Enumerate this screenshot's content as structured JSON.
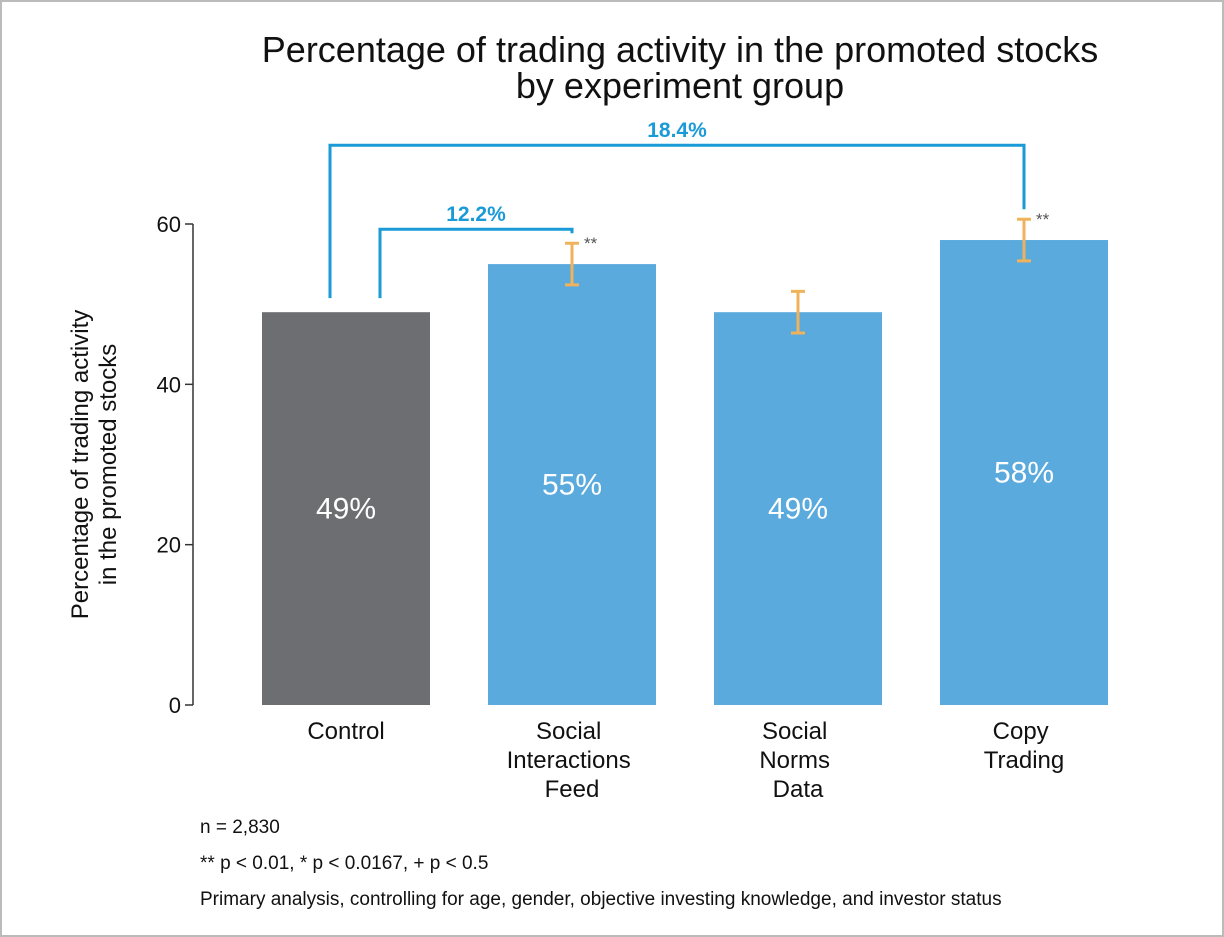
{
  "chart_data": {
    "type": "bar",
    "title": [
      "Percentage of trading activity in the promoted stocks",
      "by experiment group"
    ],
    "y_label": [
      "Percentage of trading activity",
      "in the promoted stocks"
    ],
    "categories": [
      "Control",
      "Social Interactions Feed",
      "Social Norms Data",
      "Copy Trading"
    ],
    "values": [
      49,
      55,
      49,
      58
    ],
    "value_labels": [
      "49%",
      "55%",
      "49%",
      "58%"
    ],
    "errors": [
      null,
      2.6,
      2.6,
      2.6
    ],
    "significance": [
      null,
      "**",
      null,
      "**"
    ],
    "colors": [
      "#6d6e71",
      "#5aaadd",
      "#5aaadd",
      "#5aaadd"
    ],
    "error_color": "#f0b25a",
    "comparisons": [
      {
        "label": "12.2%",
        "from": 0,
        "to": 1
      },
      {
        "label": "18.4%",
        "from": 0,
        "to": 3
      }
    ],
    "comparison_color": "#1a9ad6",
    "ylim": [
      0,
      60
    ],
    "yticks": [
      0,
      20,
      40,
      60
    ],
    "notes": [
      "n = 2,830",
      "** p < 0.01, * p < 0.0167, + p < 0.5",
      "Primary analysis, controlling for age, gender, objective investing knowledge, and investor status"
    ]
  }
}
